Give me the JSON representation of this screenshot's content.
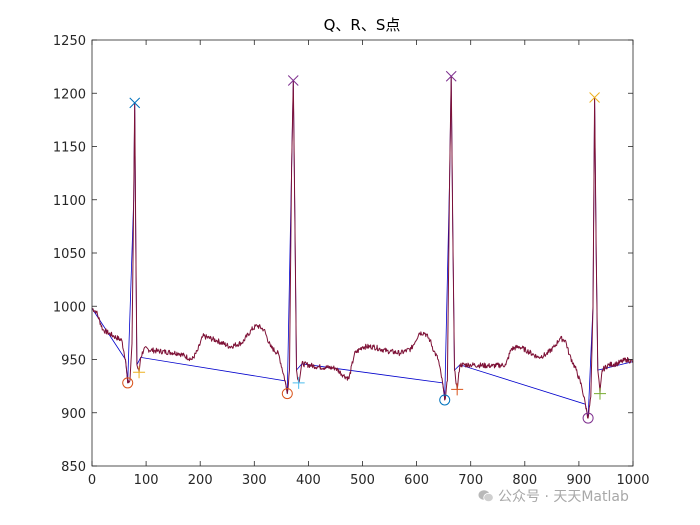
{
  "chart_data": {
    "type": "line",
    "title": "Q、R、S点",
    "xlim": [
      0,
      1000
    ],
    "ylim": [
      850,
      1250
    ],
    "xticks": [
      0,
      100,
      200,
      300,
      400,
      500,
      600,
      700,
      800,
      900,
      1000
    ],
    "yticks": [
      850,
      900,
      950,
      1000,
      1050,
      1100,
      1150,
      1200,
      1250
    ],
    "grid": false,
    "signal": {
      "color": "#7E1237",
      "keypoints": [
        [
          0,
          998
        ],
        [
          8,
          995
        ],
        [
          20,
          978
        ],
        [
          40,
          972
        ],
        [
          55,
          968
        ],
        [
          62,
          950
        ],
        [
          66,
          928
        ],
        [
          70,
          930
        ],
        [
          74,
          965
        ],
        [
          77,
          1100
        ],
        [
          79,
          1191
        ],
        [
          81,
          1060
        ],
        [
          83,
          945
        ],
        [
          87,
          938
        ],
        [
          90,
          952
        ],
        [
          96,
          960
        ],
        [
          120,
          958
        ],
        [
          160,
          956
        ],
        [
          185,
          950
        ],
        [
          195,
          958
        ],
        [
          205,
          972
        ],
        [
          230,
          968
        ],
        [
          255,
          962
        ],
        [
          278,
          966
        ],
        [
          295,
          978
        ],
        [
          305,
          982
        ],
        [
          318,
          978
        ],
        [
          330,
          962
        ],
        [
          345,
          955
        ],
        [
          357,
          930
        ],
        [
          361,
          918
        ],
        [
          365,
          940
        ],
        [
          369,
          1130
        ],
        [
          372,
          1212
        ],
        [
          375,
          1080
        ],
        [
          378,
          940
        ],
        [
          382,
          928
        ],
        [
          388,
          946
        ],
        [
          420,
          943
        ],
        [
          450,
          942
        ],
        [
          465,
          935
        ],
        [
          475,
          932
        ],
        [
          485,
          955
        ],
        [
          500,
          962
        ],
        [
          520,
          962
        ],
        [
          545,
          958
        ],
        [
          570,
          956
        ],
        [
          590,
          960
        ],
        [
          605,
          975
        ],
        [
          615,
          975
        ],
        [
          625,
          968
        ],
        [
          632,
          958
        ],
        [
          640,
          950
        ],
        [
          648,
          928
        ],
        [
          652,
          912
        ],
        [
          657,
          930
        ],
        [
          661,
          1120
        ],
        [
          664,
          1216
        ],
        [
          667,
          1070
        ],
        [
          670,
          940
        ],
        [
          675,
          922
        ],
        [
          680,
          945
        ],
        [
          700,
          945
        ],
        [
          740,
          944
        ],
        [
          765,
          945
        ],
        [
          775,
          960
        ],
        [
          790,
          962
        ],
        [
          805,
          958
        ],
        [
          825,
          952
        ],
        [
          840,
          955
        ],
        [
          855,
          962
        ],
        [
          865,
          970
        ],
        [
          875,
          968
        ],
        [
          882,
          955
        ],
        [
          895,
          940
        ],
        [
          905,
          925
        ],
        [
          912,
          908
        ],
        [
          917,
          895
        ],
        [
          922,
          915
        ],
        [
          926,
          1000
        ],
        [
          929,
          1196
        ],
        [
          932,
          1050
        ],
        [
          935,
          940
        ],
        [
          939,
          918
        ],
        [
          943,
          940
        ],
        [
          955,
          945
        ],
        [
          970,
          946
        ],
        [
          988,
          950
        ],
        [
          1000,
          948
        ]
      ]
    },
    "reference_line": {
      "color": "#0000CC",
      "points": [
        [
          0,
          998
        ],
        [
          62,
          950
        ],
        [
          66,
          928
        ],
        [
          77,
          1100
        ],
        [
          79,
          1191
        ],
        [
          81,
          1060
        ],
        [
          83,
          945
        ],
        [
          90,
          952
        ],
        [
          357,
          930
        ],
        [
          361,
          918
        ],
        [
          369,
          1130
        ],
        [
          372,
          1212
        ],
        [
          375,
          1080
        ],
        [
          378,
          940
        ],
        [
          388,
          946
        ],
        [
          648,
          928
        ],
        [
          652,
          912
        ],
        [
          661,
          1120
        ],
        [
          664,
          1216
        ],
        [
          667,
          1070
        ],
        [
          670,
          940
        ],
        [
          680,
          945
        ],
        [
          912,
          908
        ],
        [
          917,
          895
        ],
        [
          926,
          1000
        ],
        [
          929,
          1196
        ],
        [
          932,
          1050
        ],
        [
          935,
          940
        ],
        [
          1000,
          948
        ]
      ]
    },
    "markers": [
      {
        "kind": "q",
        "shape": "circle",
        "x": 66,
        "y": 928,
        "color": "#D95319"
      },
      {
        "kind": "r",
        "shape": "cross",
        "x": 79,
        "y": 1191,
        "color": "#0072BD"
      },
      {
        "kind": "s",
        "shape": "plus",
        "x": 87,
        "y": 938,
        "color": "#EDB120"
      },
      {
        "kind": "q",
        "shape": "circle",
        "x": 361,
        "y": 918,
        "color": "#D95319"
      },
      {
        "kind": "r",
        "shape": "cross",
        "x": 372,
        "y": 1212,
        "color": "#7E2F8E"
      },
      {
        "kind": "s",
        "shape": "plus",
        "x": 382,
        "y": 928,
        "color": "#4DBEEE"
      },
      {
        "kind": "q",
        "shape": "circle",
        "x": 652,
        "y": 912,
        "color": "#0072BD"
      },
      {
        "kind": "r",
        "shape": "cross",
        "x": 664,
        "y": 1216,
        "color": "#7E2F8E"
      },
      {
        "kind": "s",
        "shape": "plus",
        "x": 675,
        "y": 922,
        "color": "#D95319"
      },
      {
        "kind": "q",
        "shape": "circle",
        "x": 917,
        "y": 895,
        "color": "#7E2F8E"
      },
      {
        "kind": "r",
        "shape": "cross",
        "x": 929,
        "y": 1196,
        "color": "#EDB120"
      },
      {
        "kind": "s",
        "shape": "plus",
        "x": 939,
        "y": 918,
        "color": "#77AC30"
      }
    ]
  },
  "watermark": {
    "text": "公众号 · 天天Matlab",
    "icon": "wechat-icon"
  }
}
